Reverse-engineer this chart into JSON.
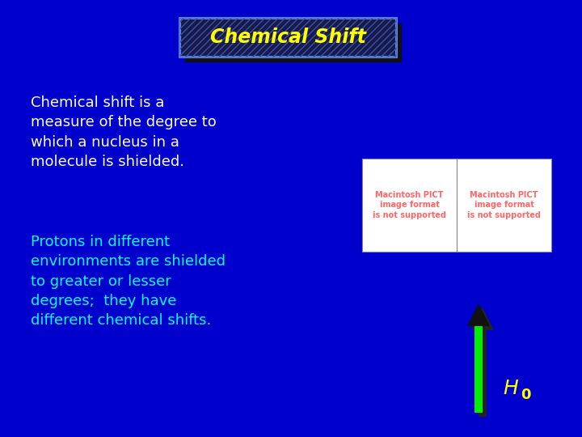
{
  "background_color": "#0000cc",
  "title": "Chemical Shift",
  "title_color": "#ffff00",
  "title_box_bg": "#1a1a4a",
  "title_box_border": "#6699ff",
  "text1": "Chemical shift is a\nmeasure of the degree to\nwhich a nucleus in a\nmolecule is shielded.",
  "text1_color": "#ffffff",
  "text2": "Protons in different\nenvironments are shielded\nto greater or lesser\ndegrees;  they have\ndifferent chemical shifts.",
  "text2_color": "#00ffff",
  "pict_box_color": "#ffffff",
  "pict_text_color": "#ff6666",
  "pict_text": "Macintosh PICT\nimage format\nis not supported",
  "arrow_color": "#00ee00",
  "arrow_shadow_color": "#222222",
  "arrow_head_color": "#111111",
  "h0_color": "#ffff00",
  "figsize": [
    7.2,
    5.4
  ],
  "dpi": 100
}
